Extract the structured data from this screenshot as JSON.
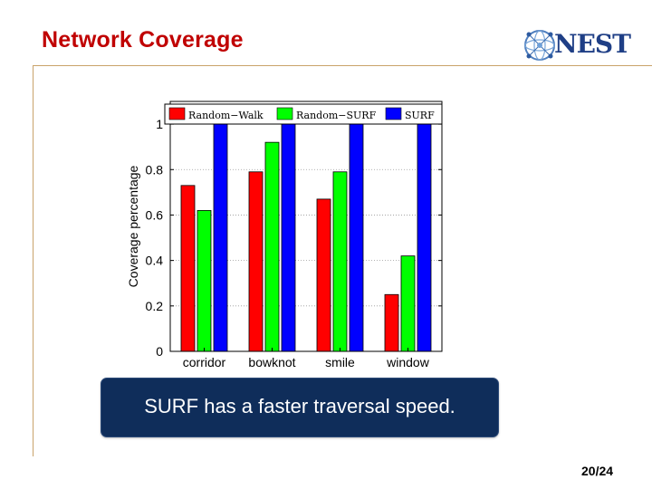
{
  "slide": {
    "title": "Network Coverage",
    "callout": "SURF has a faster traversal speed.",
    "page_number": "20/24"
  },
  "logo": {
    "text": "NEST",
    "icon": "network-globe-icon"
  },
  "colors": {
    "title": "#c00000",
    "random_walk": "#ff0000",
    "random_surf": "#00ff00",
    "surf": "#0000ff",
    "callout_bg": "#0f2d5a"
  },
  "chart_data": {
    "type": "bar",
    "ylabel": "Coverage percentage",
    "ylim": [
      0,
      1.1
    ],
    "yticks": [
      "0",
      "0.2",
      "0.4",
      "0.6",
      "0.8",
      "1"
    ],
    "ytick_values": [
      0,
      0.2,
      0.4,
      0.6,
      0.8,
      1
    ],
    "grid": true,
    "legend_position": "top",
    "categories": [
      "corridor",
      "bowknot",
      "smile",
      "window"
    ],
    "series": [
      {
        "name": "Random−Walk",
        "color": "#ff0000",
        "values": [
          0.73,
          0.79,
          0.67,
          0.25
        ]
      },
      {
        "name": "Random−SURF",
        "color": "#00ff00",
        "values": [
          0.62,
          0.92,
          0.79,
          0.42
        ]
      },
      {
        "name": "SURF",
        "color": "#0000ff",
        "values": [
          1.0,
          1.0,
          1.0,
          1.0
        ]
      }
    ]
  }
}
